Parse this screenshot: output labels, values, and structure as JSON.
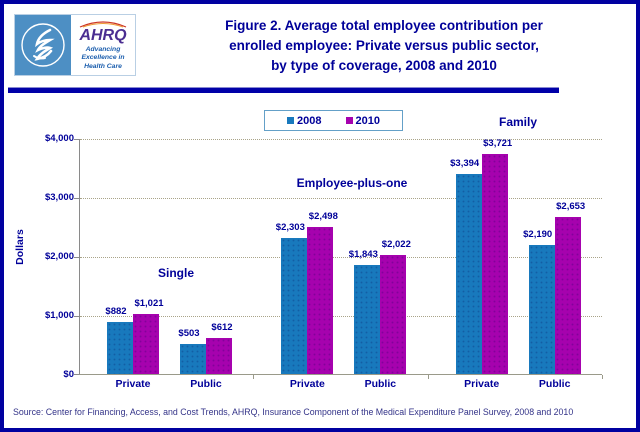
{
  "header": {
    "logo": {
      "ahrq_text": "AHRQ",
      "tagline_lines": [
        "Advancing",
        "Excellence in",
        "Health Care"
      ]
    },
    "title_lines": [
      "Figure 2. Average total employee contribution per",
      "enrolled employee: Private versus public sector,",
      "by type of coverage, 2008 and 2010"
    ]
  },
  "legend": {
    "items": [
      {
        "label": "2008",
        "color": "#1879BD"
      },
      {
        "label": "2010",
        "color": "#A602AE"
      }
    ]
  },
  "chart_data": {
    "type": "bar",
    "title": "Figure 2. Average total employee contribution per enrolled employee: Private versus public sector, by type of coverage, 2008 and 2010",
    "xlabel": "",
    "ylabel": "Dollars",
    "ylim": [
      0,
      4000
    ],
    "yticks": [
      0,
      1000,
      2000,
      3000,
      4000
    ],
    "ytick_labels": [
      "$0",
      "$1,000",
      "$2,000",
      "$3,000",
      "$4,000"
    ],
    "grid": true,
    "legend_position": "top-center",
    "group_labels": [
      "Single",
      "Employee-plus-one",
      "Family"
    ],
    "categories": [
      "Private",
      "Public",
      "Private",
      "Public",
      "Private",
      "Public"
    ],
    "series": [
      {
        "name": "2008",
        "color": "#1879BD",
        "values": [
          882,
          503,
          2303,
          1843,
          3394,
          2190
        ],
        "labels": [
          "$882",
          "$503",
          "$2,303",
          "$1,843",
          "$3,394",
          "$2,190"
        ]
      },
      {
        "name": "2010",
        "color": "#A602AE",
        "values": [
          1021,
          612,
          2498,
          2022,
          3721,
          2653
        ],
        "labels": [
          "$1,021",
          "$612",
          "$2,498",
          "$2,022",
          "$3,721",
          "$2,653"
        ]
      }
    ]
  },
  "source": "Source: Center for Financing, Access, and Cost Trends, AHRQ, Insurance Component of the Medical Expenditure Panel Survey, 2008 and 2010",
  "colors": {
    "navy_text": "#000099",
    "frame_border": "#0000A0",
    "divider": "#0000A8",
    "gridline": "#A9A489",
    "legend_border": "#64A0C8",
    "logo_blue": "#4D8FC4",
    "source_text": "#333388"
  }
}
